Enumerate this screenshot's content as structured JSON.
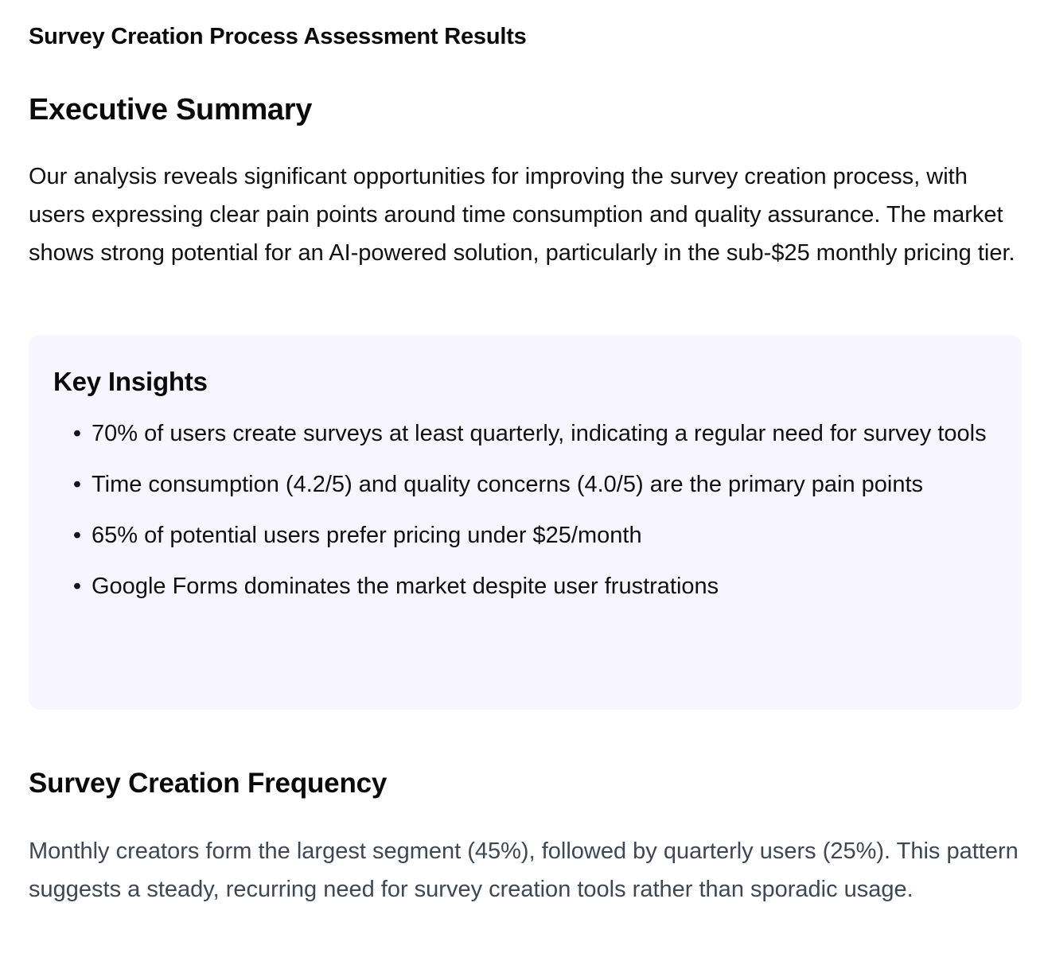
{
  "document": {
    "title": "Survey Creation Process Assessment Results"
  },
  "executive_summary": {
    "heading": "Executive Summary",
    "paragraph": "Our analysis reveals significant opportunities for improving the survey creation process, with users expressing clear pain points around time consumption and quality assurance. The market shows strong potential for an AI-powered solution, particularly in the sub-$25 monthly pricing tier."
  },
  "key_insights": {
    "heading": "Key Insights",
    "bullet_glyph": "•",
    "items": [
      "70% of users create surveys at least quarterly, indicating a regular need for survey tools",
      "Time consumption (4.2/5) and quality concerns (4.0/5) are the primary pain points",
      "65% of potential users prefer pricing under $25/month",
      "Google Forms dominates the market despite user frustrations"
    ],
    "background_color": "#f7f5ff"
  },
  "frequency_section": {
    "heading": "Survey Creation Frequency",
    "paragraph": "Monthly creators form the largest segment (45%), followed by quarterly users (25%). This pattern suggests a steady, recurring need for survey creation tools rather than sporadic usage.",
    "text_color": "#3f4654"
  }
}
